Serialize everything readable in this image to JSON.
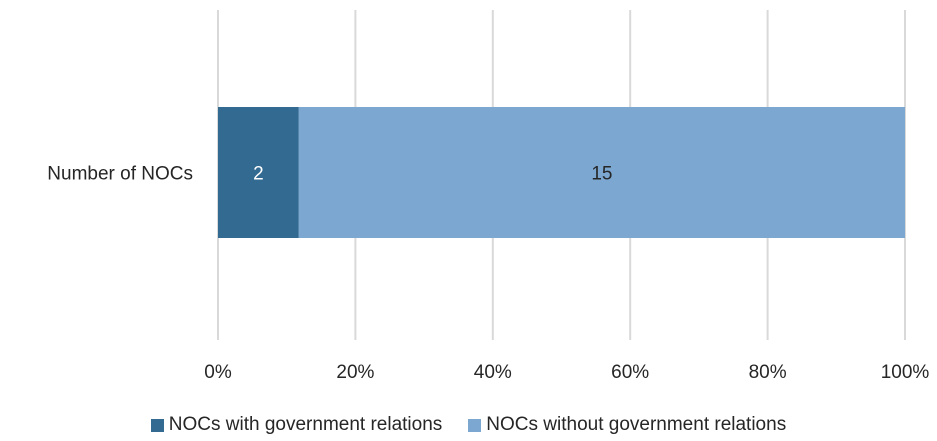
{
  "chart_data": {
    "type": "bar",
    "orientation": "horizontal",
    "stacking": "percent",
    "title": "",
    "xlabel": "",
    "ylabel": "",
    "categories": [
      "Number of NOCs"
    ],
    "series": [
      {
        "name": "NOCs with government relations",
        "values": [
          2
        ],
        "color": "#336a92"
      },
      {
        "name": "NOCs without government relations",
        "values": [
          15
        ],
        "color": "#7ba7d0"
      }
    ],
    "xlim": [
      0,
      100
    ],
    "x_ticks": [
      "0%",
      "20%",
      "40%",
      "60%",
      "80%",
      "100%"
    ],
    "grid": true,
    "legend_position": "bottom",
    "data_label_colors": [
      "#ffffff",
      "#262626"
    ]
  }
}
